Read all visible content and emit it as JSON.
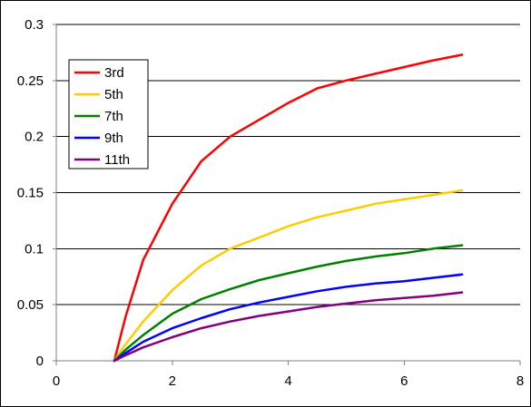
{
  "chart_data": {
    "type": "line",
    "title": "",
    "xlabel": "",
    "ylabel": "",
    "xlim": [
      0,
      8
    ],
    "ylim": [
      0,
      0.3
    ],
    "x_ticks": [
      "0",
      "2",
      "4",
      "6",
      "8"
    ],
    "y_ticks": [
      "0",
      "0.05",
      "0.1",
      "0.15",
      "0.2",
      "0.25",
      "0.3"
    ],
    "grid": "horizontal",
    "legend_position": "top-left",
    "series": [
      {
        "name": "3rd",
        "color": "#ff0000",
        "points": [
          [
            1,
            0
          ],
          [
            1.2,
            0.04
          ],
          [
            1.5,
            0.09
          ],
          [
            2,
            0.14
          ],
          [
            2.5,
            0.178
          ],
          [
            3,
            0.2
          ],
          [
            3.5,
            0.215
          ],
          [
            4,
            0.23
          ],
          [
            4.5,
            0.243
          ],
          [
            5,
            0.25
          ],
          [
            5.5,
            0.256
          ],
          [
            6,
            0.262
          ],
          [
            6.5,
            0.268
          ],
          [
            7,
            0.273
          ]
        ]
      },
      {
        "name": "5th",
        "color": "#ffcc00",
        "points": [
          [
            1,
            0
          ],
          [
            1.2,
            0.015
          ],
          [
            1.5,
            0.035
          ],
          [
            2,
            0.063
          ],
          [
            2.5,
            0.085
          ],
          [
            3,
            0.1
          ],
          [
            3.5,
            0.11
          ],
          [
            4,
            0.12
          ],
          [
            4.5,
            0.128
          ],
          [
            5,
            0.134
          ],
          [
            5.5,
            0.14
          ],
          [
            6,
            0.144
          ],
          [
            6.5,
            0.148
          ],
          [
            7,
            0.152
          ]
        ]
      },
      {
        "name": "7th",
        "color": "#008000",
        "points": [
          [
            1,
            0
          ],
          [
            1.2,
            0.01
          ],
          [
            1.5,
            0.023
          ],
          [
            2,
            0.042
          ],
          [
            2.5,
            0.055
          ],
          [
            3,
            0.064
          ],
          [
            3.5,
            0.072
          ],
          [
            4,
            0.078
          ],
          [
            4.5,
            0.084
          ],
          [
            5,
            0.089
          ],
          [
            5.5,
            0.093
          ],
          [
            6,
            0.096
          ],
          [
            6.5,
            0.1
          ],
          [
            7,
            0.103
          ]
        ]
      },
      {
        "name": "9th",
        "color": "#0000ff",
        "points": [
          [
            1,
            0
          ],
          [
            1.2,
            0.007
          ],
          [
            1.5,
            0.017
          ],
          [
            2,
            0.029
          ],
          [
            2.5,
            0.038
          ],
          [
            3,
            0.046
          ],
          [
            3.5,
            0.052
          ],
          [
            4,
            0.057
          ],
          [
            4.5,
            0.062
          ],
          [
            5,
            0.066
          ],
          [
            5.5,
            0.069
          ],
          [
            6,
            0.071
          ],
          [
            6.5,
            0.074
          ],
          [
            7,
            0.077
          ]
        ]
      },
      {
        "name": "11th",
        "color": "#800080",
        "points": [
          [
            1,
            0
          ],
          [
            1.2,
            0.005
          ],
          [
            1.5,
            0.012
          ],
          [
            2,
            0.021
          ],
          [
            2.5,
            0.029
          ],
          [
            3,
            0.035
          ],
          [
            3.5,
            0.04
          ],
          [
            4,
            0.044
          ],
          [
            4.5,
            0.048
          ],
          [
            5,
            0.051
          ],
          [
            5.5,
            0.054
          ],
          [
            6,
            0.056
          ],
          [
            6.5,
            0.058
          ],
          [
            7,
            0.061
          ]
        ]
      }
    ]
  }
}
